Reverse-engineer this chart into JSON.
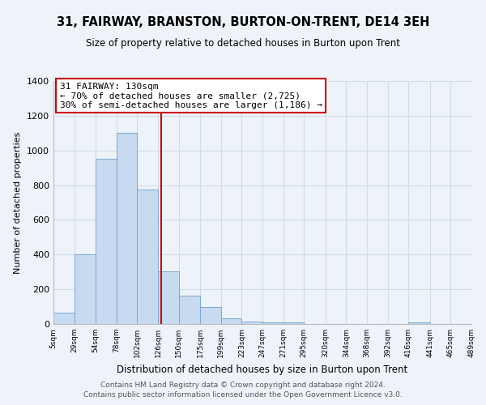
{
  "title": "31, FAIRWAY, BRANSTON, BURTON-ON-TRENT, DE14 3EH",
  "subtitle": "Size of property relative to detached houses in Burton upon Trent",
  "xlabel": "Distribution of detached houses by size in Burton upon Trent",
  "ylabel": "Number of detached properties",
  "bar_edges": [
    5,
    29,
    54,
    78,
    102,
    126,
    150,
    175,
    199,
    223,
    247,
    271,
    295,
    320,
    344,
    368,
    392,
    416,
    441,
    465,
    489
  ],
  "bar_heights": [
    65,
    400,
    950,
    1100,
    775,
    305,
    165,
    100,
    35,
    15,
    10,
    10,
    0,
    0,
    0,
    0,
    0,
    10,
    0,
    0
  ],
  "bar_color": "#c8daf0",
  "bar_edge_color": "#7aa8d0",
  "vline_x": 130,
  "vline_color": "#cc0000",
  "annotation_title": "31 FAIRWAY: 130sqm",
  "annotation_line1": "← 70% of detached houses are smaller (2,725)",
  "annotation_line2": "30% of semi-detached houses are larger (1,186) →",
  "annotation_box_color": "white",
  "annotation_box_edgecolor": "#cc0000",
  "xlim": [
    5,
    489
  ],
  "ylim": [
    0,
    1400
  ],
  "yticks": [
    0,
    200,
    400,
    600,
    800,
    1000,
    1200,
    1400
  ],
  "xtick_labels": [
    "5sqm",
    "29sqm",
    "54sqm",
    "78sqm",
    "102sqm",
    "126sqm",
    "150sqm",
    "175sqm",
    "199sqm",
    "223sqm",
    "247sqm",
    "271sqm",
    "295sqm",
    "320sqm",
    "344sqm",
    "368sqm",
    "392sqm",
    "416sqm",
    "441sqm",
    "465sqm",
    "489sqm"
  ],
  "xtick_positions": [
    5,
    29,
    54,
    78,
    102,
    126,
    150,
    175,
    199,
    223,
    247,
    271,
    295,
    320,
    344,
    368,
    392,
    416,
    441,
    465,
    489
  ],
  "footer1": "Contains HM Land Registry data © Crown copyright and database right 2024.",
  "footer2": "Contains public sector information licensed under the Open Government Licence v3.0.",
  "grid_color": "#d0dcea",
  "background_color": "#eef3fa"
}
